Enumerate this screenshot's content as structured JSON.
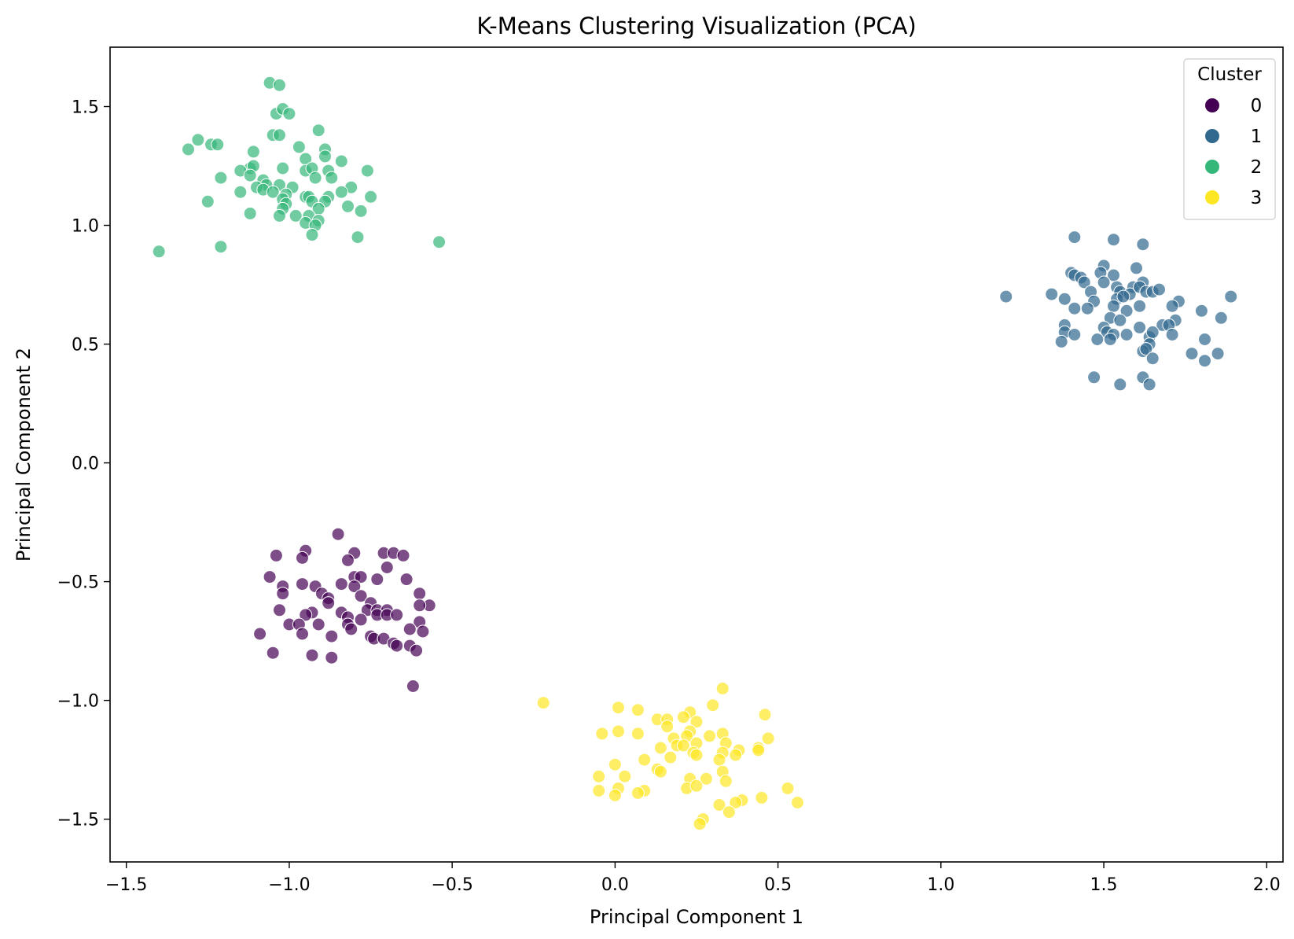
{
  "chart_data": {
    "type": "scatter",
    "title": "K-Means Clustering Visualization (PCA)",
    "xlabel": "Principal Component 1",
    "ylabel": "Principal Component 2",
    "xlim": [
      -1.55,
      2.05
    ],
    "ylim": [
      -1.68,
      1.75
    ],
    "x_ticks": [
      -1.5,
      -1.0,
      -0.5,
      0.0,
      0.5,
      1.0,
      1.5,
      2.0
    ],
    "x_tick_labels": [
      "−1.5",
      "−1.0",
      "−0.5",
      "0.0",
      "0.5",
      "1.0",
      "1.5",
      "2.0"
    ],
    "y_ticks": [
      -1.5,
      -1.0,
      -0.5,
      0.0,
      0.5,
      1.0,
      1.5
    ],
    "y_tick_labels": [
      "−1.5",
      "−1.0",
      "−0.5",
      "0.0",
      "0.5",
      "1.0",
      "1.5"
    ],
    "grid": false,
    "legend": {
      "title": "Cluster",
      "position": "top-right"
    },
    "series": [
      {
        "name": "0",
        "color": "#440154",
        "points": [
          [
            -0.85,
            -0.3
          ],
          [
            -1.04,
            -0.39
          ],
          [
            -0.95,
            -0.37
          ],
          [
            -0.96,
            -0.4
          ],
          [
            -0.8,
            -0.38
          ],
          [
            -0.71,
            -0.38
          ],
          [
            -0.68,
            -0.38
          ],
          [
            -0.65,
            -0.39
          ],
          [
            -0.82,
            -0.41
          ],
          [
            -0.7,
            -0.44
          ],
          [
            -1.06,
            -0.48
          ],
          [
            -0.8,
            -0.48
          ],
          [
            -0.78,
            -0.48
          ],
          [
            -0.73,
            -0.49
          ],
          [
            -0.64,
            -0.49
          ],
          [
            -1.02,
            -0.52
          ],
          [
            -0.96,
            -0.51
          ],
          [
            -0.92,
            -0.52
          ],
          [
            -0.84,
            -0.51
          ],
          [
            -0.8,
            -0.52
          ],
          [
            -1.02,
            -0.55
          ],
          [
            -0.9,
            -0.55
          ],
          [
            -0.6,
            -0.55
          ],
          [
            -0.78,
            -0.56
          ],
          [
            -0.88,
            -0.57
          ],
          [
            -0.88,
            -0.59
          ],
          [
            -0.75,
            -0.59
          ],
          [
            -0.57,
            -0.6
          ],
          [
            -0.6,
            -0.6
          ],
          [
            -1.03,
            -0.62
          ],
          [
            -0.93,
            -0.63
          ],
          [
            -0.76,
            -0.62
          ],
          [
            -0.73,
            -0.62
          ],
          [
            -0.7,
            -0.62
          ],
          [
            -0.95,
            -0.64
          ],
          [
            -0.84,
            -0.63
          ],
          [
            -0.82,
            -0.65
          ],
          [
            -0.73,
            -0.64
          ],
          [
            -0.7,
            -0.64
          ],
          [
            -0.67,
            -0.64
          ],
          [
            -1.0,
            -0.68
          ],
          [
            -0.97,
            -0.68
          ],
          [
            -0.91,
            -0.68
          ],
          [
            -0.82,
            -0.68
          ],
          [
            -0.78,
            -0.66
          ],
          [
            -0.6,
            -0.67
          ],
          [
            -0.81,
            -0.7
          ],
          [
            -0.63,
            -0.7
          ],
          [
            -1.09,
            -0.72
          ],
          [
            -0.96,
            -0.72
          ],
          [
            -0.87,
            -0.73
          ],
          [
            -0.59,
            -0.71
          ],
          [
            -0.75,
            -0.73
          ],
          [
            -0.74,
            -0.74
          ],
          [
            -0.71,
            -0.74
          ],
          [
            -0.68,
            -0.76
          ],
          [
            -0.67,
            -0.77
          ],
          [
            -0.63,
            -0.77
          ],
          [
            -1.05,
            -0.8
          ],
          [
            -0.93,
            -0.81
          ],
          [
            -0.87,
            -0.82
          ],
          [
            -0.61,
            -0.79
          ],
          [
            -0.62,
            -0.94
          ]
        ]
      },
      {
        "name": "1",
        "color": "#31688e",
        "points": [
          [
            1.41,
            0.95
          ],
          [
            1.53,
            0.94
          ],
          [
            1.62,
            0.92
          ],
          [
            1.5,
            0.83
          ],
          [
            1.6,
            0.82
          ],
          [
            1.4,
            0.8
          ],
          [
            1.41,
            0.79
          ],
          [
            1.49,
            0.8
          ],
          [
            1.53,
            0.79
          ],
          [
            1.43,
            0.78
          ],
          [
            1.44,
            0.76
          ],
          [
            1.5,
            0.76
          ],
          [
            1.54,
            0.74
          ],
          [
            1.59,
            0.74
          ],
          [
            1.62,
            0.76
          ],
          [
            1.46,
            0.72
          ],
          [
            1.55,
            0.72
          ],
          [
            1.58,
            0.71
          ],
          [
            1.61,
            0.74
          ],
          [
            1.63,
            0.72
          ],
          [
            1.65,
            0.72
          ],
          [
            1.67,
            0.73
          ],
          [
            1.2,
            0.7
          ],
          [
            1.34,
            0.71
          ],
          [
            1.38,
            0.69
          ],
          [
            1.54,
            0.69
          ],
          [
            1.56,
            0.7
          ],
          [
            1.89,
            0.7
          ],
          [
            1.47,
            0.68
          ],
          [
            1.73,
            0.68
          ],
          [
            1.41,
            0.65
          ],
          [
            1.45,
            0.65
          ],
          [
            1.53,
            0.66
          ],
          [
            1.61,
            0.66
          ],
          [
            1.71,
            0.66
          ],
          [
            1.57,
            0.64
          ],
          [
            1.8,
            0.64
          ],
          [
            1.52,
            0.61
          ],
          [
            1.55,
            0.6
          ],
          [
            1.72,
            0.6
          ],
          [
            1.86,
            0.61
          ],
          [
            1.38,
            0.58
          ],
          [
            1.5,
            0.57
          ],
          [
            1.61,
            0.57
          ],
          [
            1.68,
            0.58
          ],
          [
            1.7,
            0.58
          ],
          [
            1.38,
            0.55
          ],
          [
            1.41,
            0.54
          ],
          [
            1.51,
            0.55
          ],
          [
            1.53,
            0.54
          ],
          [
            1.57,
            0.54
          ],
          [
            1.64,
            0.53
          ],
          [
            1.65,
            0.55
          ],
          [
            1.71,
            0.54
          ],
          [
            1.37,
            0.51
          ],
          [
            1.48,
            0.52
          ],
          [
            1.52,
            0.52
          ],
          [
            1.64,
            0.5
          ],
          [
            1.81,
            0.52
          ],
          [
            1.62,
            0.47
          ],
          [
            1.63,
            0.48
          ],
          [
            1.77,
            0.46
          ],
          [
            1.85,
            0.46
          ],
          [
            1.65,
            0.44
          ],
          [
            1.81,
            0.43
          ],
          [
            1.47,
            0.36
          ],
          [
            1.62,
            0.36
          ],
          [
            1.55,
            0.33
          ],
          [
            1.64,
            0.33
          ]
        ]
      },
      {
        "name": "2",
        "color": "#35b779",
        "points": [
          [
            -1.06,
            1.6
          ],
          [
            -1.03,
            1.59
          ],
          [
            -1.04,
            1.47
          ],
          [
            -1.02,
            1.49
          ],
          [
            -1.0,
            1.47
          ],
          [
            -0.91,
            1.4
          ],
          [
            -1.05,
            1.38
          ],
          [
            -1.03,
            1.38
          ],
          [
            -1.28,
            1.36
          ],
          [
            -1.31,
            1.32
          ],
          [
            -1.24,
            1.34
          ],
          [
            -1.22,
            1.34
          ],
          [
            -0.97,
            1.33
          ],
          [
            -0.89,
            1.32
          ],
          [
            -1.11,
            1.31
          ],
          [
            -0.95,
            1.28
          ],
          [
            -0.89,
            1.29
          ],
          [
            -0.84,
            1.27
          ],
          [
            -1.12,
            1.24
          ],
          [
            -1.11,
            1.25
          ],
          [
            -1.15,
            1.23
          ],
          [
            -1.02,
            1.24
          ],
          [
            -0.95,
            1.23
          ],
          [
            -0.93,
            1.24
          ],
          [
            -0.88,
            1.23
          ],
          [
            -0.76,
            1.23
          ],
          [
            -1.21,
            1.2
          ],
          [
            -1.12,
            1.21
          ],
          [
            -1.08,
            1.19
          ],
          [
            -0.92,
            1.2
          ],
          [
            -0.87,
            1.2
          ],
          [
            -1.07,
            1.17
          ],
          [
            -1.03,
            1.17
          ],
          [
            -0.99,
            1.16
          ],
          [
            -0.81,
            1.16
          ],
          [
            -1.15,
            1.14
          ],
          [
            -1.1,
            1.16
          ],
          [
            -1.08,
            1.15
          ],
          [
            -1.05,
            1.14
          ],
          [
            -1.01,
            1.13
          ],
          [
            -0.95,
            1.12
          ],
          [
            -0.94,
            1.12
          ],
          [
            -0.88,
            1.12
          ],
          [
            -0.84,
            1.14
          ],
          [
            -0.75,
            1.12
          ],
          [
            -1.25,
            1.1
          ],
          [
            -1.02,
            1.11
          ],
          [
            -1.01,
            1.09
          ],
          [
            -0.93,
            1.1
          ],
          [
            -0.89,
            1.1
          ],
          [
            -1.02,
            1.07
          ],
          [
            -0.91,
            1.07
          ],
          [
            -0.82,
            1.08
          ],
          [
            -1.12,
            1.05
          ],
          [
            -1.03,
            1.04
          ],
          [
            -0.98,
            1.04
          ],
          [
            -0.94,
            1.04
          ],
          [
            -0.91,
            1.02
          ],
          [
            -0.78,
            1.06
          ],
          [
            -0.95,
            1.01
          ],
          [
            -0.92,
            1.0
          ],
          [
            -0.93,
            0.96
          ],
          [
            -0.79,
            0.95
          ],
          [
            -1.4,
            0.89
          ],
          [
            -1.21,
            0.91
          ],
          [
            -0.54,
            0.93
          ]
        ]
      },
      {
        "name": "3",
        "color": "#fde725",
        "points": [
          [
            0.33,
            -0.95
          ],
          [
            -0.22,
            -1.01
          ],
          [
            0.3,
            -1.02
          ],
          [
            0.01,
            -1.03
          ],
          [
            0.07,
            -1.04
          ],
          [
            0.23,
            -1.05
          ],
          [
            0.46,
            -1.06
          ],
          [
            0.13,
            -1.08
          ],
          [
            0.16,
            -1.08
          ],
          [
            0.21,
            -1.07
          ],
          [
            0.25,
            -1.09
          ],
          [
            0.16,
            -1.11
          ],
          [
            0.01,
            -1.13
          ],
          [
            -0.04,
            -1.14
          ],
          [
            0.07,
            -1.14
          ],
          [
            0.23,
            -1.13
          ],
          [
            0.33,
            -1.14
          ],
          [
            0.18,
            -1.16
          ],
          [
            0.22,
            -1.15
          ],
          [
            0.29,
            -1.15
          ],
          [
            0.47,
            -1.16
          ],
          [
            0.14,
            -1.2
          ],
          [
            0.19,
            -1.19
          ],
          [
            0.21,
            -1.19
          ],
          [
            0.25,
            -1.18
          ],
          [
            0.34,
            -1.18
          ],
          [
            0.44,
            -1.2
          ],
          [
            0.38,
            -1.21
          ],
          [
            0.33,
            -1.22
          ],
          [
            0.24,
            -1.22
          ],
          [
            0.09,
            -1.25
          ],
          [
            0.17,
            -1.24
          ],
          [
            0.25,
            -1.23
          ],
          [
            0.32,
            -1.25
          ],
          [
            0.37,
            -1.23
          ],
          [
            0.44,
            -1.21
          ],
          [
            0.0,
            -1.27
          ],
          [
            0.13,
            -1.29
          ],
          [
            0.14,
            -1.3
          ],
          [
            0.33,
            -1.3
          ],
          [
            -0.05,
            -1.32
          ],
          [
            0.03,
            -1.32
          ],
          [
            0.23,
            -1.33
          ],
          [
            0.28,
            -1.33
          ],
          [
            0.34,
            -1.34
          ],
          [
            0.01,
            -1.37
          ],
          [
            0.22,
            -1.37
          ],
          [
            0.25,
            -1.36
          ],
          [
            0.53,
            -1.37
          ],
          [
            -0.05,
            -1.38
          ],
          [
            0.09,
            -1.38
          ],
          [
            0.0,
            -1.4
          ],
          [
            0.07,
            -1.39
          ],
          [
            0.39,
            -1.42
          ],
          [
            0.45,
            -1.41
          ],
          [
            0.56,
            -1.43
          ],
          [
            0.32,
            -1.44
          ],
          [
            0.37,
            -1.43
          ],
          [
            0.35,
            -1.47
          ],
          [
            0.27,
            -1.5
          ],
          [
            0.26,
            -1.52
          ]
        ]
      }
    ]
  }
}
